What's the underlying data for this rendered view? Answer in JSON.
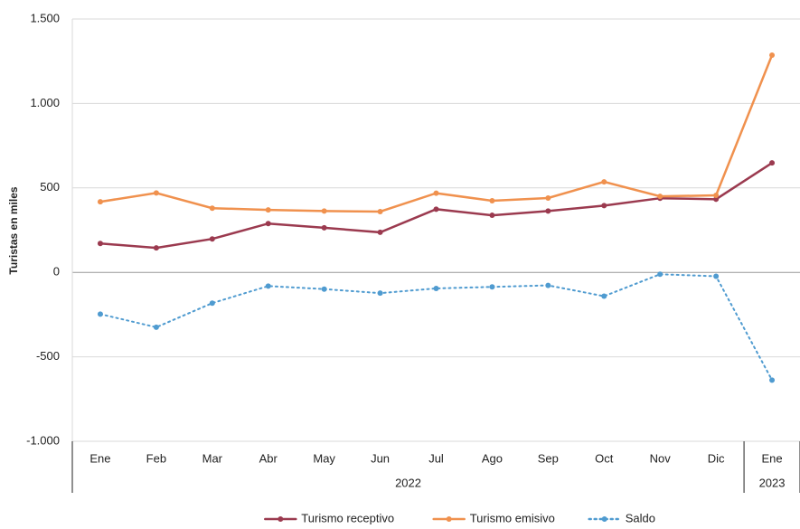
{
  "chart_data": {
    "type": "line",
    "y_label": "Turistas en miles",
    "groups": [
      {
        "label": "2022",
        "categories": [
          "Ene",
          "Feb",
          "Mar",
          "Abr",
          "May",
          "Jun",
          "Jul",
          "Ago",
          "Sep",
          "Oct",
          "Nov",
          "Dic"
        ]
      },
      {
        "label": "2023",
        "categories": [
          "Ene"
        ]
      }
    ],
    "series": [
      {
        "name": "Turismo receptivo",
        "color": "#9b3a4f",
        "style": "solid",
        "values": [
          171,
          145,
          198,
          289,
          264,
          237,
          374,
          338,
          363,
          395,
          439,
          433,
          648
        ]
      },
      {
        "name": "Turismo emisivo",
        "color": "#f0914e",
        "style": "solid",
        "values": [
          418,
          470,
          380,
          370,
          363,
          360,
          469,
          424,
          440,
          536,
          450,
          456,
          1286
        ]
      },
      {
        "name": "Saldo",
        "color": "#4f9bd0",
        "style": "dotted",
        "values": [
          -247,
          -325,
          -182,
          -81,
          -99,
          -123,
          -95,
          -86,
          -77,
          -141,
          -11,
          -23,
          -638
        ]
      }
    ],
    "ylim": [
      -1000,
      1500
    ],
    "yticks": [
      {
        "value": -1000,
        "label": "-1.000"
      },
      -500,
      0,
      500,
      {
        "value": 1000,
        "label": "1.000"
      },
      {
        "value": 1500,
        "label": "1.500"
      }
    ],
    "grid": true,
    "legend": "bottom"
  }
}
